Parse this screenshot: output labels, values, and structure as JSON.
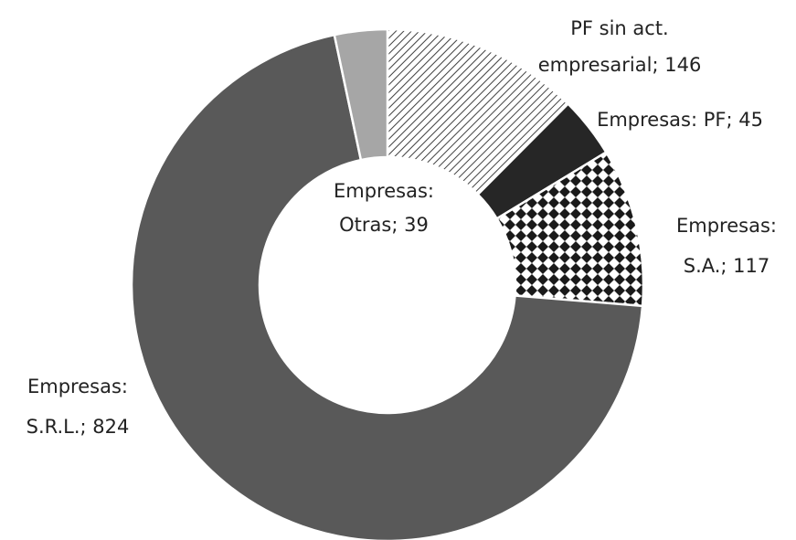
{
  "chart_data": {
    "type": "donut",
    "values": [
      146,
      45,
      117,
      824,
      39
    ],
    "value_labels": [
      [
        "PF sin act.",
        "empresarial; 146"
      ],
      [
        "Empresas: PF; 45"
      ],
      [
        "Empresas:",
        "S.A.; 117"
      ],
      [
        "Empresas:",
        "S.R.L.; 824"
      ],
      [
        "Empresas:",
        "Otras; 39"
      ]
    ],
    "colors": [
      "#404040",
      "#262626",
      "#262626",
      "#595959",
      "#a6a6a6"
    ],
    "patterns": [
      "diagonal",
      null,
      "diamond",
      null,
      null
    ]
  }
}
